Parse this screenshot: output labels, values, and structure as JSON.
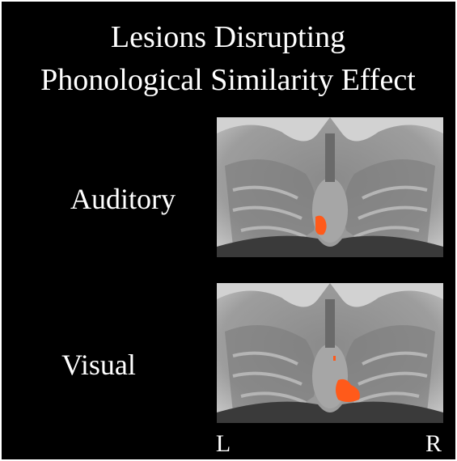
{
  "title": [
    "Lesions Disrupting",
    "Phonological Similarity Effect"
  ],
  "panels": [
    {
      "label": "Auditory"
    },
    {
      "label": "Visual"
    }
  ],
  "orientation": {
    "left": "L",
    "right": "R"
  }
}
